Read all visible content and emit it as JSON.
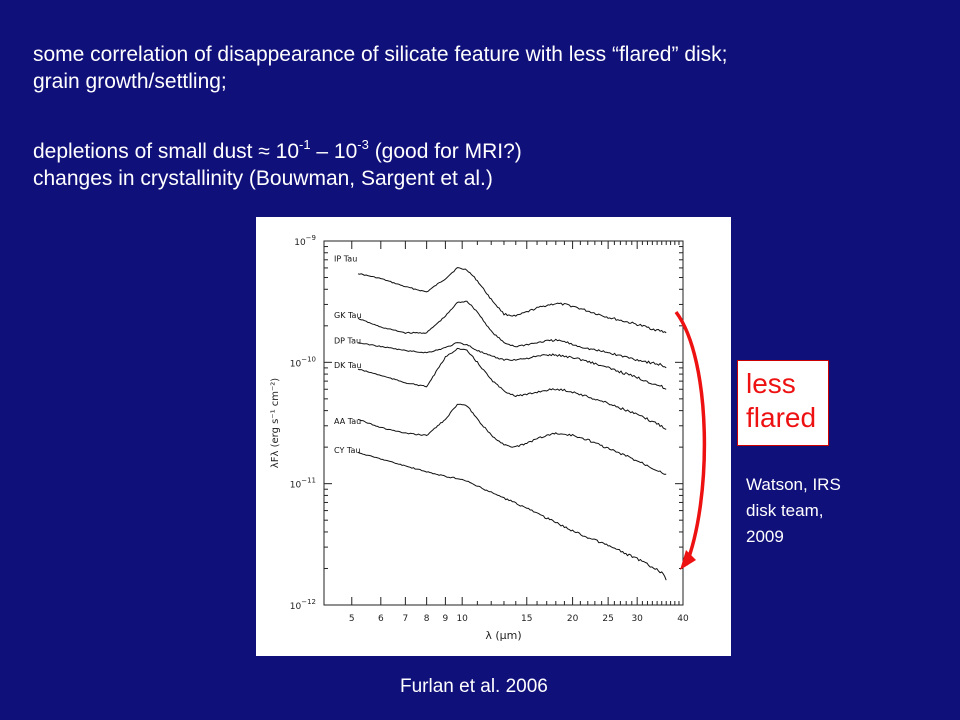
{
  "slide": {
    "line1": "some correlation of disappearance of silicate feature with less “flared” disk;",
    "line2": "grain growth/settling;",
    "line3_a": "depletions of small dust ≈ 10",
    "line3_sup1": "-1",
    "line3_b": " – 10",
    "line3_sup2": "-3",
    "line3_c": " (good for MRI?)",
    "line4": "changes in crystallinity (Bouwman, Sargent et al.)",
    "label_line1": "less",
    "label_line2": "flared",
    "credit_line1": "Watson, IRS",
    "credit_line2": "disk team,",
    "credit_line3": "2009",
    "caption": "Furlan et al. 2006",
    "text_color": "#ffffff",
    "background_color": "#10107a",
    "arrow_color": "#ee1111"
  },
  "chart_data": {
    "type": "line",
    "xscale": "log",
    "yscale": "log",
    "xlabel": "λ (μm)",
    "ylabel": "λFλ (erg s⁻¹ cm⁻²)",
    "xlim": [
      4.2,
      40
    ],
    "ylim": [
      1e-12,
      1e-09
    ],
    "xticks": [
      5,
      6,
      7,
      8,
      9,
      10,
      15,
      20,
      25,
      30,
      40
    ],
    "yticks": [
      {
        "value": 1e-09,
        "label": "10",
        "exp": "−9"
      },
      {
        "value": 1e-10,
        "label": "10",
        "exp": "−10"
      },
      {
        "value": 1e-11,
        "label": "10",
        "exp": "−11"
      },
      {
        "value": 1e-12,
        "label": "10",
        "exp": "−12"
      }
    ],
    "series": [
      {
        "name": "IP Tau",
        "label_y": 7.2e-10,
        "x": [
          5.2,
          6,
          7,
          8,
          9,
          9.7,
          10.3,
          11,
          12,
          13,
          14,
          15,
          16,
          17,
          18,
          19,
          20,
          22,
          25,
          30,
          35,
          36
        ],
        "y": [
          5.4e-10,
          4.9e-10,
          4.2e-10,
          3.8e-10,
          4.9e-10,
          6e-10,
          5.8e-10,
          4.7e-10,
          3.3e-10,
          2.5e-10,
          2.4e-10,
          2.6e-10,
          2.8e-10,
          2.95e-10,
          3.05e-10,
          3e-10,
          2.9e-10,
          2.65e-10,
          2.35e-10,
          2.05e-10,
          1.8e-10,
          1.75e-10
        ]
      },
      {
        "name": "GK Tau",
        "label_y": 2.45e-10,
        "x": [
          5.2,
          6,
          7,
          8,
          9,
          9.7,
          10.3,
          11,
          12,
          13,
          14,
          15,
          16,
          17,
          18,
          19,
          20,
          22,
          25,
          30,
          35,
          36
        ],
        "y": [
          2.3e-10,
          1.95e-10,
          1.75e-10,
          1.75e-10,
          2.4e-10,
          3.1e-10,
          3.2e-10,
          2.6e-10,
          1.8e-10,
          1.45e-10,
          1.35e-10,
          1.4e-10,
          1.45e-10,
          1.5e-10,
          1.52e-10,
          1.48e-10,
          1.4e-10,
          1.3e-10,
          1.2e-10,
          1.05e-10,
          9.5e-11,
          9e-11
        ]
      },
      {
        "name": "DP Tau",
        "label_y": 1.52e-10,
        "x": [
          5.2,
          6,
          7,
          8,
          9,
          9.7,
          10.3,
          11,
          12,
          13,
          14,
          15,
          16,
          17,
          18,
          19,
          20,
          22,
          25,
          30,
          35,
          36
        ],
        "y": [
          1.45e-10,
          1.35e-10,
          1.25e-10,
          1.2e-10,
          1.32e-10,
          1.45e-10,
          1.4e-10,
          1.25e-10,
          1.12e-10,
          1.05e-10,
          1.05e-10,
          1.08e-10,
          1.12e-10,
          1.15e-10,
          1.15e-10,
          1.12e-10,
          1.1e-10,
          1.02e-10,
          9e-11,
          7.5e-11,
          6.3e-11,
          6e-11
        ]
      },
      {
        "name": "DK Tau",
        "label_y": 9.5e-11,
        "x": [
          5.2,
          6,
          7,
          8,
          9,
          9.7,
          10.3,
          11,
          12,
          13,
          14,
          15,
          16,
          17,
          18,
          19,
          20,
          22,
          25,
          30,
          35,
          36
        ],
        "y": [
          8.8e-11,
          7.8e-11,
          6.8e-11,
          6.3e-11,
          1.1e-10,
          1.3e-10,
          1.25e-10,
          1e-10,
          7.2e-11,
          5.8e-11,
          5.3e-11,
          5.4e-11,
          5.7e-11,
          5.9e-11,
          6e-11,
          5.9e-11,
          5.7e-11,
          5.2e-11,
          4.6e-11,
          3.7e-11,
          3e-11,
          2.8e-11
        ]
      },
      {
        "name": "AA Tau",
        "label_y": 3.3e-11,
        "x": [
          5.2,
          6,
          7,
          8,
          9,
          9.7,
          10.3,
          11,
          12,
          13,
          14,
          15,
          16,
          17,
          18,
          19,
          20,
          22,
          25,
          30,
          35,
          36
        ],
        "y": [
          3.4e-11,
          2.9e-11,
          2.6e-11,
          2.5e-11,
          3.4e-11,
          4.5e-11,
          4.4e-11,
          3.4e-11,
          2.5e-11,
          2.1e-11,
          2e-11,
          2.15e-11,
          2.35e-11,
          2.5e-11,
          2.6e-11,
          2.55e-11,
          2.5e-11,
          2.3e-11,
          1.95e-11,
          1.55e-11,
          1.25e-11,
          1.2e-11
        ]
      },
      {
        "name": "CY Tau",
        "label_y": 1.9e-11,
        "x": [
          5.2,
          6,
          7,
          8,
          9,
          9.7,
          10.3,
          11,
          12,
          13,
          14,
          15,
          16,
          17,
          18,
          19,
          20,
          22,
          25,
          30,
          35,
          36
        ],
        "y": [
          1.8e-11,
          1.6e-11,
          1.4e-11,
          1.25e-11,
          1.15e-11,
          1.1e-11,
          1.05e-11,
          9.5e-12,
          8.5e-12,
          7.6e-12,
          6.9e-12,
          6.3e-12,
          5.7e-12,
          5.2e-12,
          4.8e-12,
          4.4e-12,
          4.1e-12,
          3.6e-12,
          3.1e-12,
          2.4e-12,
          1.85e-12,
          1.6e-12
        ]
      }
    ]
  }
}
